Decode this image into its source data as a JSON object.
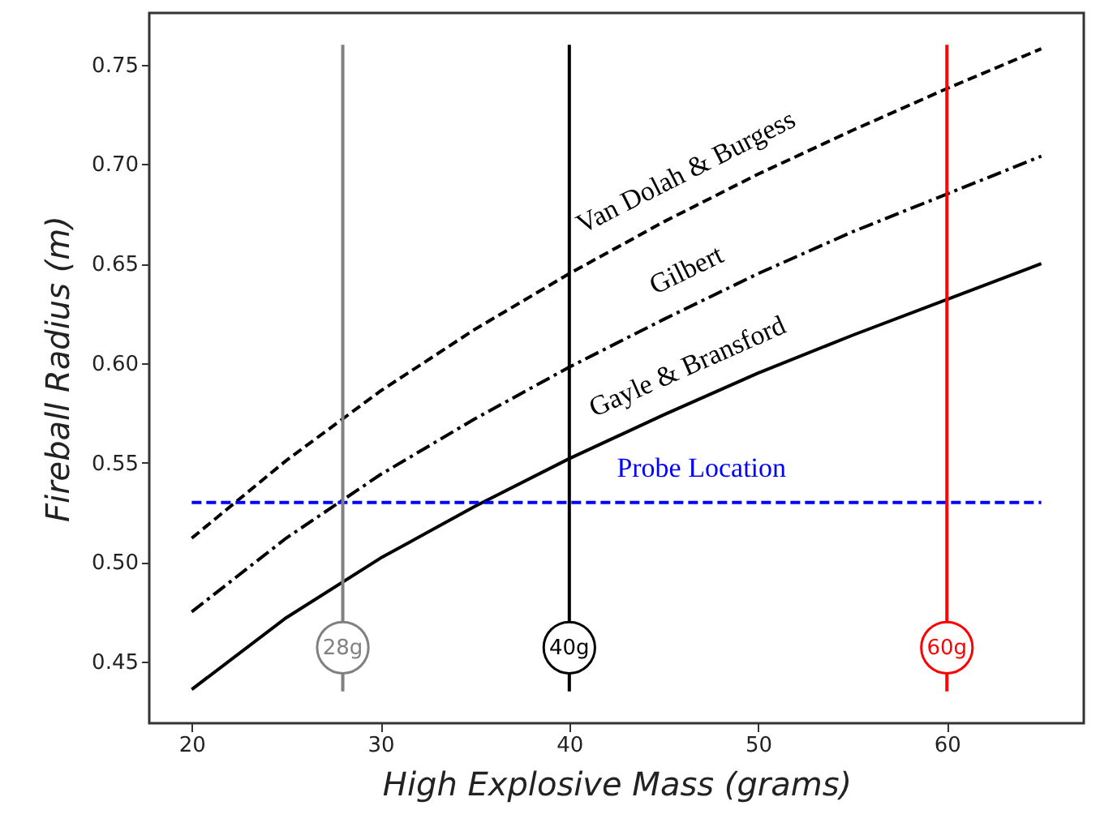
{
  "chart_data": {
    "type": "line",
    "xlabel": "High Explosive Mass (grams)",
    "ylabel": "Fireball Radius (m)",
    "xlim": [
      17.75,
      67.25
    ],
    "ylim": [
      0.419,
      0.776
    ],
    "xticks": [
      20,
      30,
      40,
      50,
      60
    ],
    "yticks": [
      {
        "value": 0.45,
        "label": "0.45"
      },
      {
        "value": 0.5,
        "label": "0.50"
      },
      {
        "value": 0.55,
        "label": "0.55"
      },
      {
        "value": 0.6,
        "label": "0.60"
      },
      {
        "value": 0.65,
        "label": "0.65"
      },
      {
        "value": 0.7,
        "label": "0.70"
      },
      {
        "value": 0.75,
        "label": "0.75"
      }
    ],
    "grid": false,
    "series": [
      {
        "name": "Van Dolah & Burgess",
        "color": "#000000",
        "line_style": "dashed",
        "x": [
          20,
          25,
          30,
          35,
          40,
          45,
          50,
          55,
          60,
          65
        ],
        "values": [
          0.512,
          0.551,
          0.586,
          0.617,
          0.645,
          0.671,
          0.695,
          0.717,
          0.738,
          0.758
        ]
      },
      {
        "name": "Gilbert",
        "color": "#000000",
        "line_style": "dashdot",
        "x": [
          20,
          25,
          30,
          35,
          40,
          45,
          50,
          55,
          60,
          65
        ],
        "values": [
          0.475,
          0.512,
          0.544,
          0.572,
          0.598,
          0.622,
          0.645,
          0.666,
          0.685,
          0.704
        ]
      },
      {
        "name": "Gayle & Bransford",
        "color": "#000000",
        "line_style": "solid",
        "x": [
          20,
          25,
          30,
          35,
          40,
          45,
          50,
          55,
          60,
          65
        ],
        "values": [
          0.436,
          0.472,
          0.502,
          0.528,
          0.552,
          0.574,
          0.595,
          0.614,
          0.632,
          0.65
        ]
      },
      {
        "name": "Probe Location",
        "color": "#0000ff",
        "line_style": "dashed",
        "x": [
          20,
          65
        ],
        "values": [
          0.53,
          0.53
        ]
      },
      {
        "color": "#808080",
        "line_style": "solid",
        "x": [
          28,
          28
        ],
        "values": [
          0.435,
          0.76
        ]
      },
      {
        "color": "#000000",
        "line_style": "solid",
        "x": [
          40,
          40
        ],
        "values": [
          0.435,
          0.76
        ]
      },
      {
        "color": "#ff0000",
        "line_style": "solid",
        "x": [
          60,
          60
        ],
        "values": [
          0.435,
          0.76
        ]
      }
    ],
    "annotations": [
      {
        "text": "28g",
        "x": 28,
        "y": 0.457
      },
      {
        "text": "40g",
        "x": 40,
        "y": 0.457
      },
      {
        "text": "60g",
        "x": 60,
        "y": 0.457
      }
    ]
  }
}
